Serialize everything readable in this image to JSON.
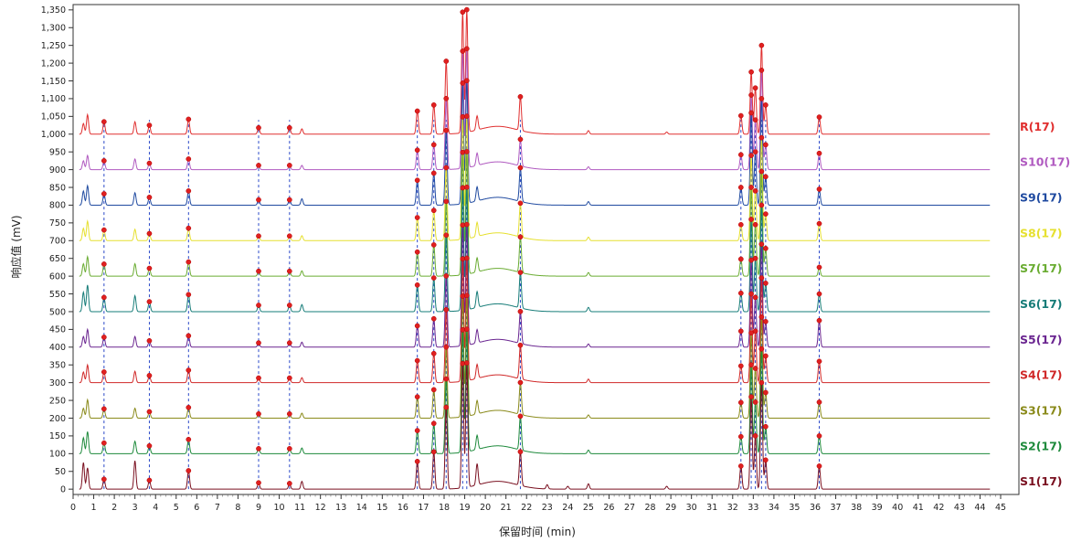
{
  "chart_data": {
    "type": "line",
    "title": "",
    "xlabel": "保留时间 (min)",
    "ylabel": "响应值 (mV)",
    "xlim": [
      0,
      45
    ],
    "ylim": [
      -15,
      1365
    ],
    "x_ticks": [
      0,
      1,
      2,
      3,
      4,
      5,
      6,
      7,
      8,
      9,
      10,
      11,
      12,
      13,
      14,
      15,
      16,
      17,
      18,
      19,
      20,
      21,
      22,
      23,
      24,
      25,
      26,
      27,
      28,
      29,
      30,
      31,
      32,
      33,
      34,
      35,
      36,
      37,
      38,
      39,
      40,
      41,
      42,
      43,
      44,
      45
    ],
    "y_ticks": [
      0,
      50,
      100,
      150,
      200,
      250,
      300,
      350,
      400,
      450,
      500,
      550,
      600,
      650,
      700,
      750,
      800,
      850,
      900,
      950,
      1000,
      1050,
      1100,
      1150,
      1200,
      1250,
      1300,
      1350
    ],
    "y_tick_labels": [
      "0",
      "50",
      "100",
      "150",
      "200",
      "250",
      "300",
      "350",
      "400",
      "450",
      "500",
      "550",
      "600",
      "650",
      "700",
      "750",
      "800",
      "850",
      "900",
      "950",
      "1,000",
      "1,050",
      "1,100",
      "1,150",
      "1,200",
      "1,250",
      "1,300",
      "1,350"
    ],
    "grid": false,
    "legend": "right",
    "marker_times": [
      1.5,
      3.7,
      5.6,
      9.0,
      10.5,
      16.7,
      17.5,
      18.1,
      18.9,
      19.1,
      21.7,
      32.4,
      32.9,
      33.1,
      33.4,
      33.6,
      36.2
    ],
    "series": [
      {
        "name": "R(17)",
        "baseline": 1000,
        "color": "#e03030",
        "peaks": [
          [
            0.5,
            30
          ],
          [
            0.7,
            55
          ],
          [
            1.5,
            35
          ],
          [
            3,
            35
          ],
          [
            3.7,
            25
          ],
          [
            5.6,
            42
          ],
          [
            9,
            18
          ],
          [
            10.5,
            18
          ],
          [
            11.1,
            15
          ],
          [
            16.7,
            65
          ],
          [
            17.5,
            82
          ],
          [
            18.1,
            205
          ],
          [
            18.9,
            340
          ],
          [
            19.1,
            345
          ],
          [
            19.6,
            40
          ],
          [
            21.7,
            95
          ],
          [
            25,
            10
          ],
          [
            28.8,
            6
          ],
          [
            32.4,
            52
          ],
          [
            32.9,
            175
          ],
          [
            33.1,
            130
          ],
          [
            33.4,
            250
          ],
          [
            33.6,
            82
          ],
          [
            36.2,
            48
          ]
        ]
      },
      {
        "name": "S10(17)",
        "baseline": 900,
        "color": "#b05ac0",
        "peaks": [
          [
            0.5,
            25
          ],
          [
            0.7,
            40
          ],
          [
            1.5,
            25
          ],
          [
            3,
            30
          ],
          [
            3.7,
            18
          ],
          [
            5.6,
            30
          ],
          [
            9,
            12
          ],
          [
            10.5,
            12
          ],
          [
            11.1,
            12
          ],
          [
            16.7,
            55
          ],
          [
            17.5,
            70
          ],
          [
            18.1,
            200
          ],
          [
            18.9,
            330
          ],
          [
            19.1,
            335
          ],
          [
            19.6,
            35
          ],
          [
            21.7,
            75
          ],
          [
            25,
            8
          ],
          [
            32.4,
            42
          ],
          [
            32.9,
            210
          ],
          [
            33.1,
            140
          ],
          [
            33.4,
            280
          ],
          [
            33.6,
            70
          ],
          [
            36.2,
            46
          ]
        ]
      },
      {
        "name": "S9(17)",
        "baseline": 800,
        "color": "#1f4aa0",
        "peaks": [
          [
            0.5,
            40
          ],
          [
            0.7,
            55
          ],
          [
            1.5,
            32
          ],
          [
            3,
            35
          ],
          [
            3.7,
            22
          ],
          [
            5.6,
            40
          ],
          [
            9,
            15
          ],
          [
            10.5,
            15
          ],
          [
            11.1,
            18
          ],
          [
            16.7,
            70
          ],
          [
            17.5,
            90
          ],
          [
            18.1,
            210
          ],
          [
            18.9,
            340
          ],
          [
            19.1,
            345
          ],
          [
            19.6,
            40
          ],
          [
            21.7,
            95
          ],
          [
            25,
            10
          ],
          [
            32.4,
            50
          ],
          [
            32.9,
            260
          ],
          [
            33.1,
            150
          ],
          [
            33.4,
            300
          ],
          [
            33.6,
            80
          ],
          [
            36.2,
            45
          ]
        ]
      },
      {
        "name": "S8(17)",
        "baseline": 700,
        "color": "#e6e030",
        "peaks": [
          [
            0.5,
            35
          ],
          [
            0.7,
            55
          ],
          [
            1.5,
            30
          ],
          [
            3,
            32
          ],
          [
            3.7,
            20
          ],
          [
            5.6,
            35
          ],
          [
            9,
            13
          ],
          [
            10.5,
            13
          ],
          [
            11.1,
            14
          ],
          [
            16.7,
            65
          ],
          [
            17.5,
            85
          ],
          [
            18.1,
            205
          ],
          [
            18.9,
            345
          ],
          [
            19.1,
            345
          ],
          [
            19.6,
            40
          ],
          [
            21.7,
            95
          ],
          [
            25,
            10
          ],
          [
            32.4,
            45
          ],
          [
            32.9,
            240
          ],
          [
            33.1,
            140
          ],
          [
            33.4,
            290
          ],
          [
            33.6,
            75
          ],
          [
            36.2,
            48
          ]
        ]
      },
      {
        "name": "S7(17)",
        "baseline": 600,
        "color": "#6aac32",
        "peaks": [
          [
            0.5,
            35
          ],
          [
            0.7,
            55
          ],
          [
            1.5,
            34
          ],
          [
            3,
            35
          ],
          [
            3.7,
            22
          ],
          [
            5.6,
            40
          ],
          [
            9,
            14
          ],
          [
            10.5,
            14
          ],
          [
            11.1,
            15
          ],
          [
            16.7,
            68
          ],
          [
            17.5,
            88
          ],
          [
            18.1,
            210
          ],
          [
            18.9,
            345
          ],
          [
            19.1,
            345
          ],
          [
            19.6,
            40
          ],
          [
            21.7,
            100
          ],
          [
            25,
            10
          ],
          [
            32.4,
            48
          ],
          [
            32.9,
            250
          ],
          [
            33.1,
            145
          ],
          [
            33.4,
            295
          ],
          [
            33.6,
            78
          ],
          [
            36.2,
            25
          ]
        ]
      },
      {
        "name": "S6(17)",
        "baseline": 500,
        "color": "#167c78",
        "peaks": [
          [
            0.5,
            55
          ],
          [
            0.7,
            75
          ],
          [
            1.5,
            40
          ],
          [
            3,
            45
          ],
          [
            3.7,
            28
          ],
          [
            5.6,
            48
          ],
          [
            9,
            18
          ],
          [
            10.5,
            18
          ],
          [
            11.1,
            20
          ],
          [
            16.7,
            75
          ],
          [
            17.5,
            95
          ],
          [
            18.1,
            215
          ],
          [
            18.9,
            345
          ],
          [
            19.1,
            345
          ],
          [
            19.6,
            45
          ],
          [
            21.7,
            100
          ],
          [
            25,
            12
          ],
          [
            32.4,
            52
          ],
          [
            32.9,
            260
          ],
          [
            33.1,
            150
          ],
          [
            33.4,
            300
          ],
          [
            33.6,
            80
          ],
          [
            36.2,
            50
          ]
        ]
      },
      {
        "name": "S5(17)",
        "baseline": 400,
        "color": "#6a2590",
        "peaks": [
          [
            0.5,
            30
          ],
          [
            0.7,
            50
          ],
          [
            1.5,
            28
          ],
          [
            3,
            30
          ],
          [
            3.7,
            18
          ],
          [
            5.6,
            32
          ],
          [
            9,
            12
          ],
          [
            10.5,
            12
          ],
          [
            11.1,
            14
          ],
          [
            16.7,
            60
          ],
          [
            17.5,
            80
          ],
          [
            18.1,
            200
          ],
          [
            18.9,
            340
          ],
          [
            19.1,
            340
          ],
          [
            19.6,
            38
          ],
          [
            21.7,
            90
          ],
          [
            25,
            9
          ],
          [
            32.4,
            45
          ],
          [
            32.9,
            245
          ],
          [
            33.1,
            140
          ],
          [
            33.4,
            290
          ],
          [
            33.6,
            72
          ],
          [
            36.2,
            75
          ]
        ]
      },
      {
        "name": "S4(17)",
        "baseline": 300,
        "color": "#d02828",
        "peaks": [
          [
            0.5,
            30
          ],
          [
            0.7,
            50
          ],
          [
            1.5,
            30
          ],
          [
            3,
            32
          ],
          [
            3.7,
            20
          ],
          [
            5.6,
            35
          ],
          [
            9,
            13
          ],
          [
            10.5,
            13
          ],
          [
            11.1,
            14
          ],
          [
            16.7,
            62
          ],
          [
            17.5,
            82
          ],
          [
            18.1,
            205
          ],
          [
            18.9,
            345
          ],
          [
            19.1,
            345
          ],
          [
            19.6,
            40
          ],
          [
            21.7,
            95
          ],
          [
            25,
            10
          ],
          [
            32.4,
            47
          ],
          [
            32.9,
            250
          ],
          [
            33.1,
            145
          ],
          [
            33.4,
            295
          ],
          [
            33.6,
            75
          ],
          [
            36.2,
            60
          ]
        ]
      },
      {
        "name": "S3(17)",
        "baseline": 200,
        "color": "#8a8a1a",
        "peaks": [
          [
            0.5,
            28
          ],
          [
            0.7,
            52
          ],
          [
            1.5,
            26
          ],
          [
            3,
            28
          ],
          [
            3.7,
            18
          ],
          [
            5.6,
            30
          ],
          [
            9,
            12
          ],
          [
            10.5,
            12
          ],
          [
            11.1,
            14
          ],
          [
            16.7,
            60
          ],
          [
            17.5,
            80
          ],
          [
            18.1,
            200
          ],
          [
            18.9,
            340
          ],
          [
            19.1,
            340
          ],
          [
            19.6,
            38
          ],
          [
            21.7,
            90
          ],
          [
            25,
            9
          ],
          [
            32.4,
            44
          ],
          [
            32.9,
            240
          ],
          [
            33.1,
            140
          ],
          [
            33.4,
            285
          ],
          [
            33.6,
            72
          ],
          [
            36.2,
            45
          ]
        ]
      },
      {
        "name": "S2(17)",
        "baseline": 100,
        "color": "#1e8a3c",
        "peaks": [
          [
            0.5,
            45
          ],
          [
            0.7,
            62
          ],
          [
            1.5,
            30
          ],
          [
            3,
            35
          ],
          [
            3.7,
            22
          ],
          [
            5.6,
            40
          ],
          [
            9,
            14
          ],
          [
            10.5,
            14
          ],
          [
            11.1,
            16
          ],
          [
            16.7,
            65
          ],
          [
            17.5,
            85
          ],
          [
            18.1,
            210
          ],
          [
            18.9,
            345
          ],
          [
            19.1,
            345
          ],
          [
            19.6,
            40
          ],
          [
            21.7,
            95
          ],
          [
            25,
            10
          ],
          [
            32.4,
            48
          ],
          [
            32.9,
            250
          ],
          [
            33.1,
            145
          ],
          [
            33.4,
            295
          ],
          [
            33.6,
            76
          ],
          [
            36.2,
            50
          ]
        ]
      },
      {
        "name": "S1(17)",
        "baseline": 0,
        "color": "#7a1020",
        "peaks": [
          [
            0.5,
            75
          ],
          [
            0.7,
            60
          ],
          [
            1.5,
            28
          ],
          [
            3,
            80
          ],
          [
            3.7,
            25
          ],
          [
            5.6,
            52
          ],
          [
            9,
            18
          ],
          [
            10.5,
            16
          ],
          [
            11.1,
            22
          ],
          [
            16.7,
            78
          ],
          [
            17.5,
            105
          ],
          [
            18.1,
            230
          ],
          [
            18.9,
            350
          ],
          [
            19.1,
            350
          ],
          [
            19.6,
            60
          ],
          [
            21.7,
            95
          ],
          [
            23,
            12
          ],
          [
            24,
            8
          ],
          [
            25,
            15
          ],
          [
            28.8,
            8
          ],
          [
            32.4,
            65
          ],
          [
            32.9,
            260
          ],
          [
            33.1,
            150
          ],
          [
            33.4,
            300
          ],
          [
            33.6,
            82
          ],
          [
            36.2,
            65
          ]
        ]
      }
    ]
  }
}
